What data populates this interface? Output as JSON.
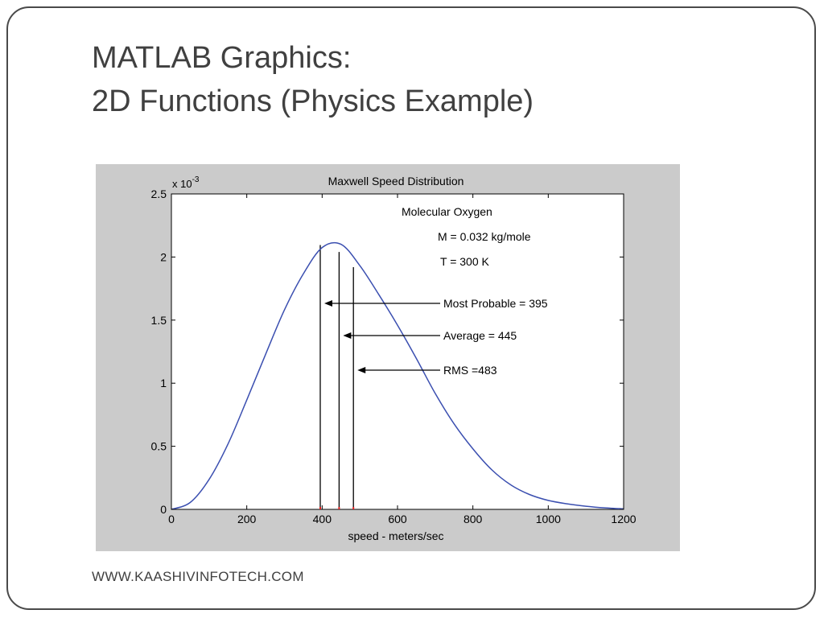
{
  "slide": {
    "title_line1": "MATLAB Graphics:",
    "title_line2": "2D Functions (Physics Example)",
    "footer": "WWW.KAASHIVINFOTECH.COM"
  },
  "chart_data": {
    "type": "line",
    "title": "Maxwell Speed Distribution",
    "xlabel": "speed - meters/sec",
    "ylabel": "",
    "y_exponent_label": "x 10",
    "y_exponent_power": "-3",
    "xlim": [
      0,
      1200
    ],
    "ylim": [
      0,
      2.5
    ],
    "xticks": [
      0,
      200,
      400,
      600,
      800,
      1000,
      1200
    ],
    "xtick_labels": [
      "0",
      "200",
      "400",
      "600",
      "800",
      "1000",
      "1200"
    ],
    "yticks": [
      0,
      0.5,
      1,
      1.5,
      2,
      2.5
    ],
    "ytick_labels": [
      "0",
      "0.5",
      "1",
      "1.5",
      "2",
      "2.5"
    ],
    "grid": false,
    "curve_color": "#3b4fb0",
    "series": [
      {
        "x": [
          0,
          50,
          100,
          150,
          200,
          250,
          300,
          350,
          400,
          450,
          500,
          550,
          600,
          650,
          700,
          750,
          800,
          850,
          900,
          950,
          1000,
          1050,
          1100,
          1150,
          1200
        ],
        "y": [
          0,
          0.055,
          0.237,
          0.517,
          0.867,
          1.229,
          1.581,
          1.866,
          2.075,
          2.101,
          1.932,
          1.704,
          1.46,
          1.196,
          0.919,
          0.678,
          0.48,
          0.314,
          0.195,
          0.118,
          0.071,
          0.044,
          0.025,
          0.012,
          0.004
        ]
      }
    ],
    "annotations": {
      "gas": "Molecular Oxygen",
      "mass": "M = 0.032 kg/mole",
      "temperature": "T = 300 K"
    },
    "markers": [
      {
        "label": "Most Probable = 395",
        "x": 395,
        "y": 2.095
      },
      {
        "label": "Average = 445",
        "x": 445,
        "y": 2.04
      },
      {
        "label": "RMS =483",
        "x": 483,
        "y": 1.92
      }
    ]
  }
}
